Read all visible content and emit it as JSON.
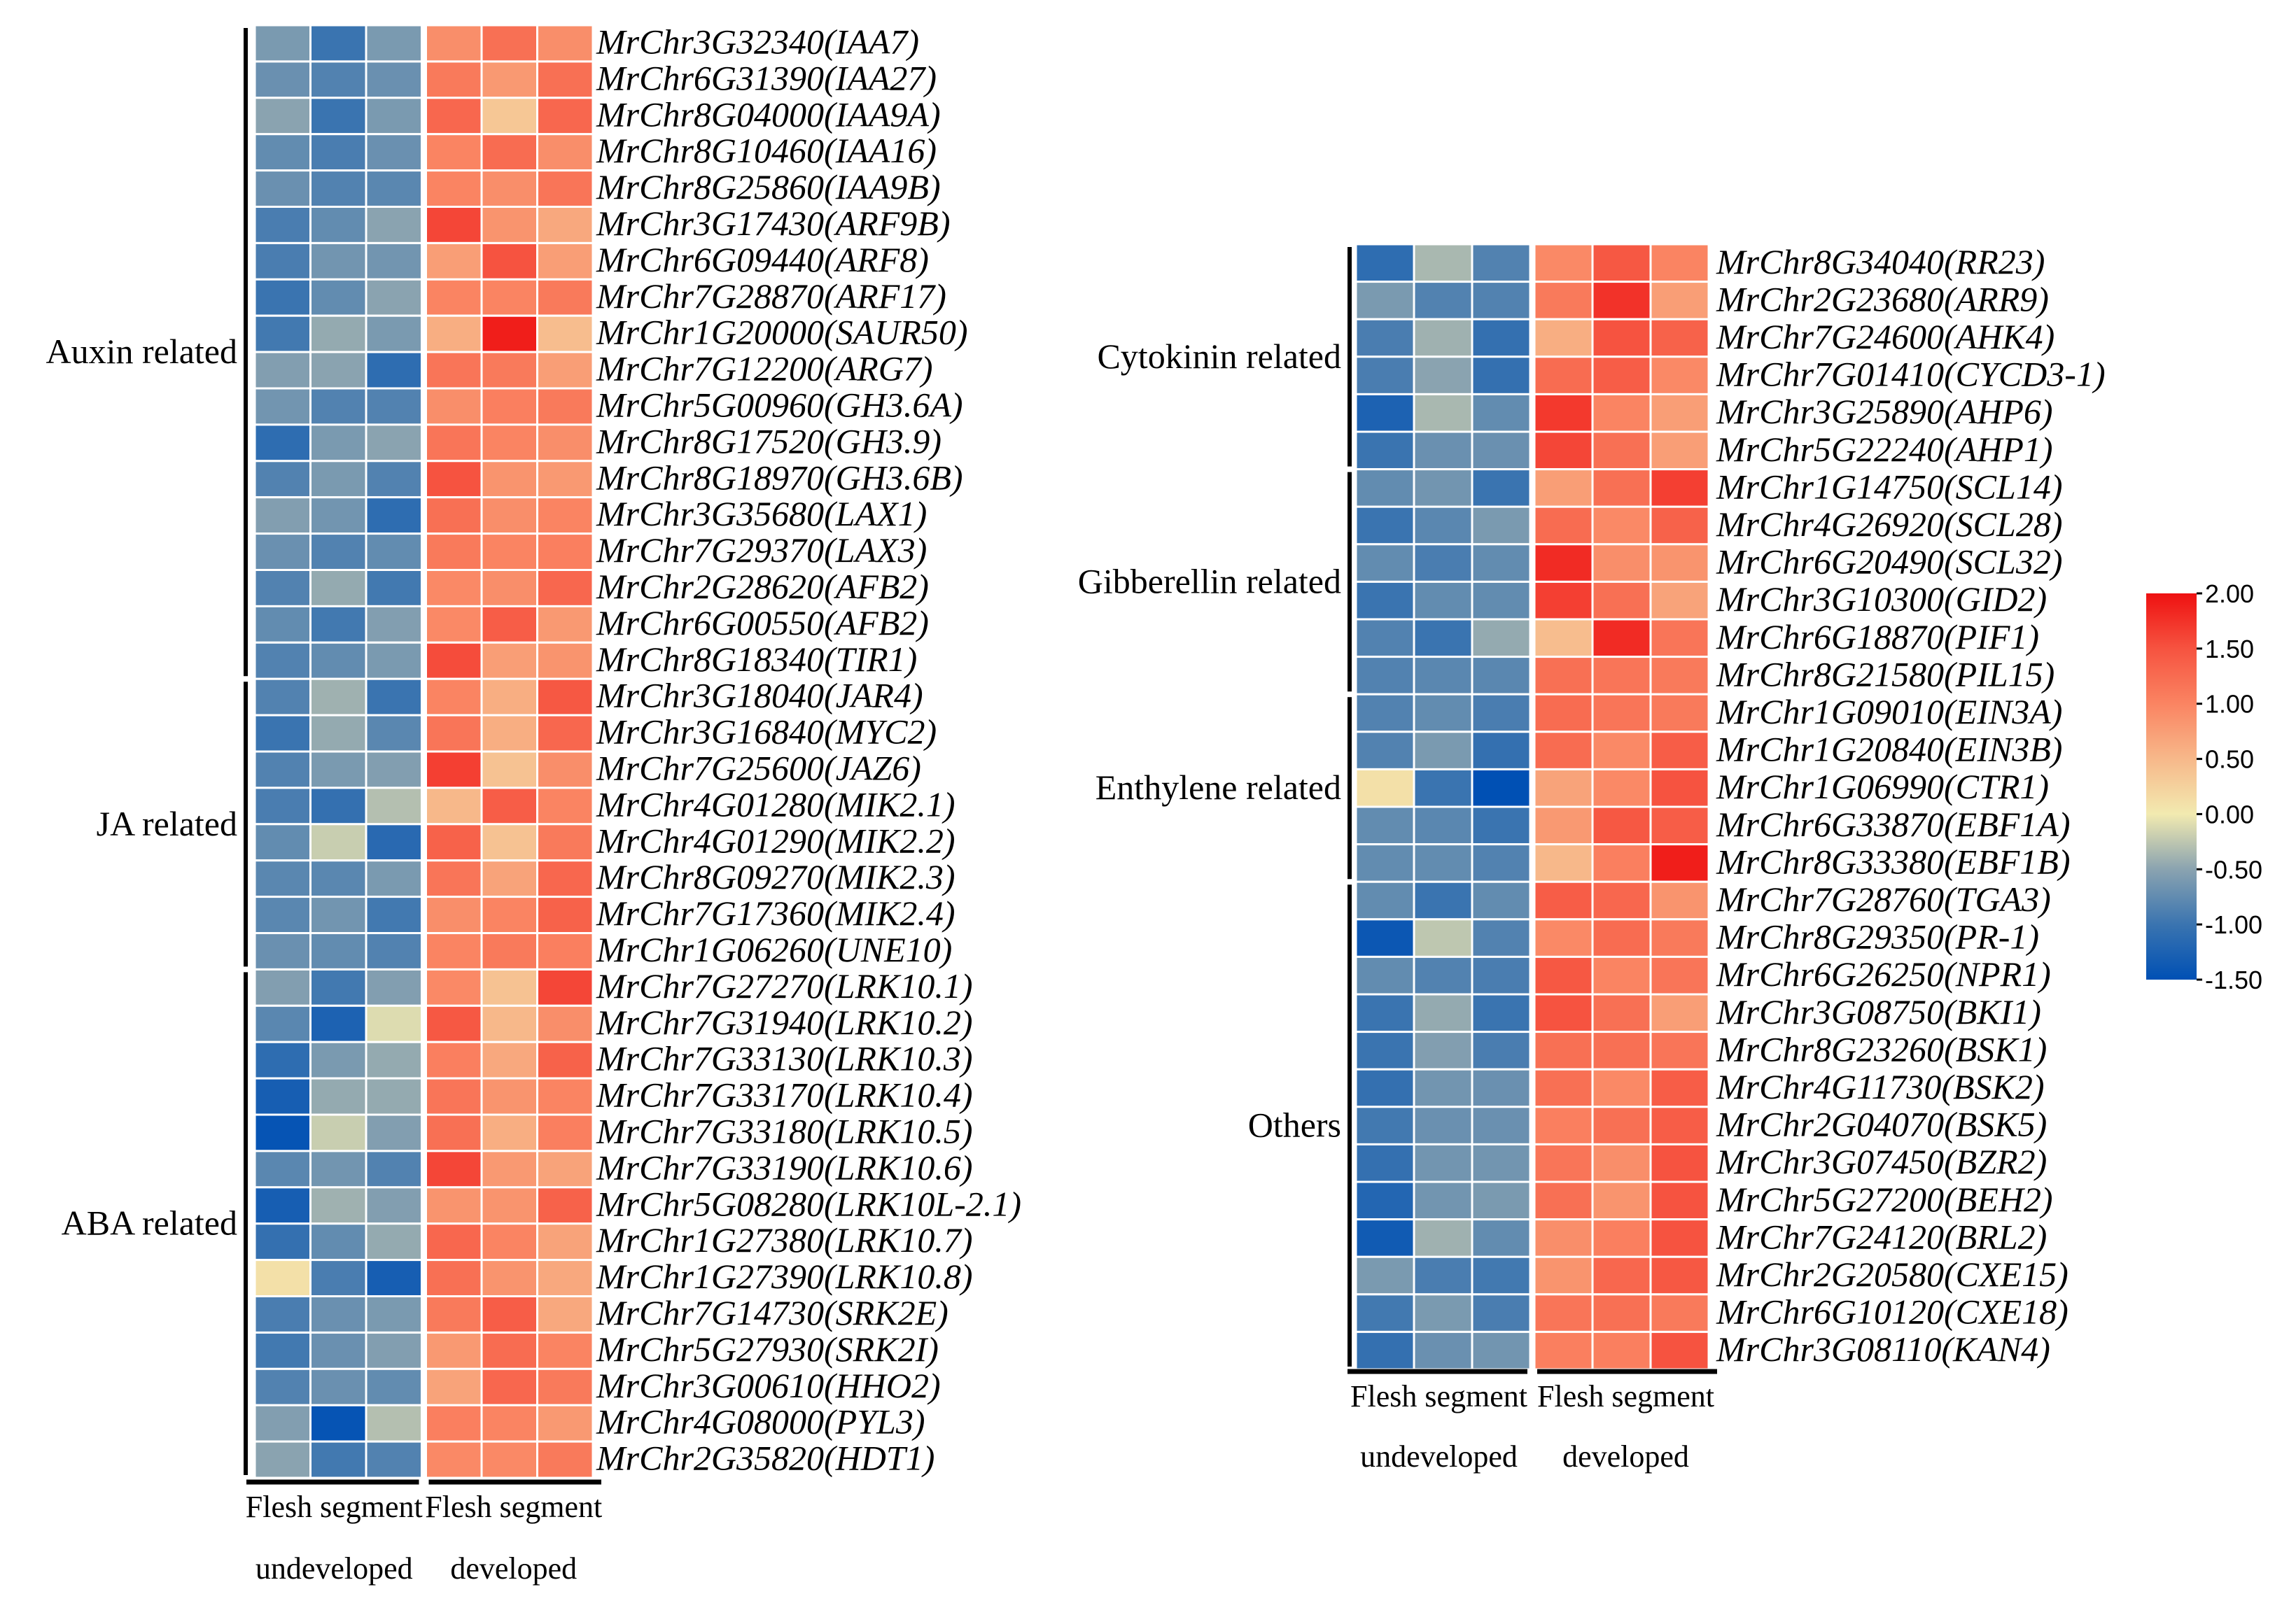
{
  "chart_data": {
    "type": "heatmap",
    "color_scale": {
      "min": -1.5,
      "max": 2.0,
      "ticks": [
        "2.00",
        "1.50",
        "1.00",
        "0.50",
        "0.00",
        "-0.50",
        "-1.00",
        "-1.50"
      ],
      "stops": [
        [
          -1.5,
          "#0050b4"
        ],
        [
          -1.0,
          "#3a74b0"
        ],
        [
          -0.5,
          "#8aa3b0"
        ],
        [
          0.0,
          "#f2eab0"
        ],
        [
          0.5,
          "#f7b88a"
        ],
        [
          1.0,
          "#fa8462"
        ],
        [
          1.5,
          "#f65340"
        ],
        [
          2.0,
          "#ee1111"
        ]
      ]
    },
    "column_groups": [
      {
        "line1": "Flesh segment",
        "line2": "undeveloped"
      },
      {
        "line1": "Flesh segment",
        "line2": "developed"
      }
    ],
    "panels": [
      {
        "groups": [
          {
            "label": "Auxin related",
            "start": 0,
            "end": 17
          },
          {
            "label": "JA related",
            "start": 18,
            "end": 25
          },
          {
            "label": "ABA related",
            "start": 26,
            "end": 39
          }
        ],
        "rows": [
          {
            "gene": "MrChr3G32340(IAA7)",
            "values": [
              -0.6,
              -1.0,
              -0.6,
              0.9,
              1.2,
              0.9
            ]
          },
          {
            "gene": "MrChr6G31390(IAA27)",
            "values": [
              -0.7,
              -0.85,
              -0.7,
              1.1,
              0.8,
              1.2
            ]
          },
          {
            "gene": "MrChr8G04000(IAA9A)",
            "values": [
              -0.5,
              -1.0,
              -0.6,
              1.3,
              0.35,
              1.3
            ]
          },
          {
            "gene": "MrChr8G10460(IAA16)",
            "values": [
              -0.75,
              -0.9,
              -0.7,
              1.0,
              1.25,
              0.9
            ]
          },
          {
            "gene": "MrChr8G25860(IAA9B)",
            "values": [
              -0.7,
              -0.85,
              -0.8,
              1.0,
              0.9,
              1.15
            ]
          },
          {
            "gene": "MrChr3G17430(ARF9B)",
            "values": [
              -0.9,
              -0.75,
              -0.5,
              1.6,
              0.85,
              0.65
            ]
          },
          {
            "gene": "MrChr6G09440(ARF8)",
            "values": [
              -0.9,
              -0.65,
              -0.65,
              0.75,
              1.5,
              0.75
            ]
          },
          {
            "gene": "MrChr7G28870(ARF17)",
            "values": [
              -1.0,
              -0.75,
              -0.5,
              1.0,
              1.0,
              1.1
            ]
          },
          {
            "gene": "MrChr1G20000(SAUR50)",
            "values": [
              -0.95,
              -0.45,
              -0.6,
              0.6,
              1.9,
              0.45
            ]
          },
          {
            "gene": "MrChr7G12200(ARG7)",
            "values": [
              -0.55,
              -0.5,
              -1.1,
              1.15,
              1.1,
              0.75
            ]
          },
          {
            "gene": "MrChr5G00960(GH3.6A)",
            "values": [
              -0.65,
              -0.85,
              -0.85,
              0.9,
              1.05,
              1.1
            ]
          },
          {
            "gene": "MrChr8G17520(GH3.9)",
            "values": [
              -1.1,
              -0.6,
              -0.5,
              1.15,
              1.0,
              0.9
            ]
          },
          {
            "gene": "MrChr8G18970(GH3.6B)",
            "values": [
              -0.85,
              -0.6,
              -0.85,
              1.5,
              0.85,
              0.8
            ]
          },
          {
            "gene": "MrChr3G35680(LAX1)",
            "values": [
              -0.55,
              -0.65,
              -1.1,
              1.2,
              0.9,
              1.0
            ]
          },
          {
            "gene": "MrChr7G29370(LAX3)",
            "values": [
              -0.7,
              -0.85,
              -0.75,
              1.1,
              1.0,
              1.05
            ]
          },
          {
            "gene": "MrChr2G28620(AFB2)",
            "values": [
              -0.85,
              -0.45,
              -0.95,
              0.95,
              0.9,
              1.3
            ]
          },
          {
            "gene": "MrChr6G00550(AFB2)",
            "values": [
              -0.75,
              -0.95,
              -0.55,
              0.95,
              1.4,
              0.8
            ]
          },
          {
            "gene": "MrChr8G18340(TIR1)",
            "values": [
              -0.85,
              -0.75,
              -0.6,
              1.55,
              0.75,
              0.85
            ]
          },
          {
            "gene": "MrChr3G18040(JAR4)",
            "values": [
              -0.85,
              -0.4,
              -1.0,
              1.0,
              0.6,
              1.45
            ]
          },
          {
            "gene": "MrChr3G16840(MYC2)",
            "values": [
              -1.0,
              -0.45,
              -0.8,
              1.15,
              0.6,
              1.3
            ]
          },
          {
            "gene": "MrChr7G25600(JAZ6)",
            "values": [
              -0.85,
              -0.6,
              -0.55,
              1.65,
              0.4,
              0.9
            ]
          },
          {
            "gene": "MrChr4G01280(MIK2.1)",
            "values": [
              -0.9,
              -1.05,
              -0.3,
              0.5,
              1.4,
              1.0
            ]
          },
          {
            "gene": "MrChr4G01290(MIK2.2)",
            "values": [
              -0.75,
              -0.2,
              -1.15,
              1.35,
              0.4,
              1.1
            ]
          },
          {
            "gene": "MrChr8G09270(MIK2.3)",
            "values": [
              -0.8,
              -0.8,
              -0.6,
              1.15,
              0.7,
              1.3
            ]
          },
          {
            "gene": "MrChr7G17360(MIK2.4)",
            "values": [
              -0.8,
              -0.65,
              -0.95,
              0.9,
              1.0,
              1.35
            ]
          },
          {
            "gene": "MrChr1G06260(UNE10)",
            "values": [
              -0.7,
              -0.75,
              -0.85,
              1.0,
              1.1,
              1.05
            ]
          },
          {
            "gene": "MrChr7G27270(LRK10.1)",
            "values": [
              -0.55,
              -0.95,
              -0.55,
              0.95,
              0.4,
              1.6
            ]
          },
          {
            "gene": "MrChr7G31940(LRK10.2)",
            "values": [
              -0.8,
              -1.25,
              -0.1,
              1.45,
              0.5,
              0.9
            ]
          },
          {
            "gene": "MrChr7G33130(LRK10.3)",
            "values": [
              -1.1,
              -0.6,
              -0.45,
              1.05,
              0.65,
              1.35
            ]
          },
          {
            "gene": "MrChr7G33170(LRK10.4)",
            "values": [
              -1.3,
              -0.45,
              -0.45,
              1.15,
              0.85,
              1.0
            ]
          },
          {
            "gene": "MrChr7G33180(LRK10.5)",
            "values": [
              -1.45,
              -0.2,
              -0.55,
              1.2,
              0.6,
              1.05
            ]
          },
          {
            "gene": "MrChr7G33190(LRK10.6)",
            "values": [
              -0.8,
              -0.65,
              -0.85,
              1.6,
              0.8,
              0.7
            ]
          },
          {
            "gene": "MrChr5G08280(LRK10L-2.1)",
            "values": [
              -1.3,
              -0.4,
              -0.55,
              0.85,
              0.85,
              1.35
            ]
          },
          {
            "gene": "MrChr1G27380(LRK10.7)",
            "values": [
              -1.05,
              -0.75,
              -0.45,
              1.3,
              1.0,
              0.7
            ]
          },
          {
            "gene": "MrChr1G27390(LRK10.8)",
            "values": [
              0.1,
              -0.9,
              -1.3,
              1.2,
              0.85,
              0.65
            ]
          },
          {
            "gene": "MrChr7G14730(SRK2E)",
            "values": [
              -0.9,
              -0.7,
              -0.6,
              1.1,
              1.4,
              0.65
            ]
          },
          {
            "gene": "MrChr5G27930(SRK2I)",
            "values": [
              -0.95,
              -0.7,
              -0.55,
              0.8,
              1.25,
              1.0
            ]
          },
          {
            "gene": "MrChr3G00610(HHO2)",
            "values": [
              -0.85,
              -0.7,
              -0.75,
              0.7,
              1.3,
              1.1
            ]
          },
          {
            "gene": "MrChr4G08000(PYL3)",
            "values": [
              -0.55,
              -1.45,
              -0.3,
              1.05,
              1.0,
              0.8
            ]
          },
          {
            "gene": "MrChr2G35820(HDT1)",
            "values": [
              -0.5,
              -0.95,
              -0.85,
              0.95,
              0.95,
              1.1
            ]
          }
        ]
      },
      {
        "groups": [
          {
            "label": "Cytokinin related",
            "start": 0,
            "end": 5
          },
          {
            "label": "Gibberellin related",
            "start": 6,
            "end": 11
          },
          {
            "label": "Enthylene related",
            "start": 12,
            "end": 16
          },
          {
            "label": "Others",
            "start": 17,
            "end": 29
          }
        ],
        "rows": [
          {
            "gene": "MrChr8G34040(RR23)",
            "values": [
              -1.1,
              -0.35,
              -0.85,
              0.95,
              1.45,
              1.0
            ]
          },
          {
            "gene": "MrChr2G23680(ARR9)",
            "values": [
              -0.6,
              -0.85,
              -0.85,
              1.1,
              1.75,
              0.75
            ]
          },
          {
            "gene": "MrChr7G24600(AHK4)",
            "values": [
              -0.9,
              -0.4,
              -1.05,
              0.6,
              1.5,
              1.35
            ]
          },
          {
            "gene": "MrChr7G01410(CYCD3-1)",
            "values": [
              -0.9,
              -0.5,
              -1.05,
              1.25,
              1.4,
              0.95
            ]
          },
          {
            "gene": "MrChr3G25890(AHP6)",
            "values": [
              -1.25,
              -0.35,
              -0.75,
              1.7,
              1.0,
              0.75
            ]
          },
          {
            "gene": "MrChr5G22240(AHP1)",
            "values": [
              -1.0,
              -0.7,
              -0.7,
              1.6,
              1.2,
              0.75
            ]
          },
          {
            "gene": "MrChr1G14750(SCL14)",
            "values": [
              -0.75,
              -0.65,
              -1.0,
              0.75,
              1.2,
              1.65
            ]
          },
          {
            "gene": "MrChr4G26920(SCL28)",
            "values": [
              -1.0,
              -0.8,
              -0.6,
              1.25,
              0.95,
              1.35
            ]
          },
          {
            "gene": "MrChr6G20490(SCL32)",
            "values": [
              -0.75,
              -0.9,
              -0.75,
              1.8,
              0.9,
              0.85
            ]
          },
          {
            "gene": "MrChr3G10300(GID2)",
            "values": [
              -1.0,
              -0.75,
              -0.75,
              1.65,
              1.2,
              0.7
            ]
          },
          {
            "gene": "MrChr6G18870(PIF1)",
            "values": [
              -0.85,
              -1.0,
              -0.45,
              0.45,
              1.8,
              1.15
            ]
          },
          {
            "gene": "MrChr8G21580(PIL15)",
            "values": [
              -0.85,
              -0.8,
              -0.8,
              1.2,
              1.15,
              1.1
            ]
          },
          {
            "gene": "MrChr1G09010(EIN3A)",
            "values": [
              -0.85,
              -0.75,
              -0.9,
              1.25,
              1.15,
              1.1
            ]
          },
          {
            "gene": "MrChr1G20840(EIN3B)",
            "values": [
              -0.85,
              -0.6,
              -1.05,
              1.25,
              0.95,
              1.4
            ]
          },
          {
            "gene": "MrChr1G06990(CTR1)",
            "values": [
              0.1,
              -1.0,
              -1.5,
              0.7,
              0.95,
              1.5
            ]
          },
          {
            "gene": "MrChr6G33870(EBF1A)",
            "values": [
              -0.75,
              -0.8,
              -1.0,
              0.8,
              1.45,
              1.4
            ]
          },
          {
            "gene": "MrChr8G33380(EBF1B)",
            "values": [
              -0.75,
              -0.75,
              -0.85,
              0.5,
              1.05,
              1.9
            ]
          },
          {
            "gene": "MrChr7G28760(TGA3)",
            "values": [
              -0.75,
              -1.0,
              -0.75,
              1.4,
              1.3,
              0.85
            ]
          },
          {
            "gene": "MrChr8G29350(PR-1)",
            "values": [
              -1.4,
              -0.25,
              -0.85,
              0.95,
              1.25,
              1.1
            ]
          },
          {
            "gene": "MrChr6G26250(NPR1)",
            "values": [
              -0.75,
              -0.85,
              -0.9,
              1.45,
              1.0,
              1.15
            ]
          },
          {
            "gene": "MrChr3G08750(BKI1)",
            "values": [
              -1.0,
              -0.45,
              -1.0,
              1.5,
              1.2,
              0.75
            ]
          },
          {
            "gene": "MrChr8G23260(BSK1)",
            "values": [
              -1.0,
              -0.55,
              -0.9,
              1.2,
              1.2,
              1.15
            ]
          },
          {
            "gene": "MrChr4G11730(BSK2)",
            "values": [
              -1.05,
              -0.65,
              -0.7,
              1.2,
              0.95,
              1.4
            ]
          },
          {
            "gene": "MrChr2G04070(BSK5)",
            "values": [
              -0.95,
              -0.7,
              -0.7,
              1.05,
              1.2,
              1.4
            ]
          },
          {
            "gene": "MrChr3G07450(BZR2)",
            "values": [
              -1.05,
              -0.65,
              -0.65,
              1.15,
              0.9,
              1.5
            ]
          },
          {
            "gene": "MrChr5G27200(BEH2)",
            "values": [
              -1.2,
              -0.65,
              -0.6,
              1.2,
              0.85,
              1.5
            ]
          },
          {
            "gene": "MrChr7G24120(BRL2)",
            "values": [
              -1.35,
              -0.4,
              -0.75,
              0.9,
              1.05,
              1.5
            ]
          },
          {
            "gene": "MrChr2G20580(CXE15)",
            "values": [
              -0.6,
              -0.9,
              -0.95,
              0.85,
              1.3,
              1.45
            ]
          },
          {
            "gene": "MrChr6G10120(CXE18)",
            "values": [
              -0.95,
              -0.6,
              -0.9,
              1.15,
              1.2,
              1.1
            ]
          },
          {
            "gene": "MrChr3G08110(KAN4)",
            "values": [
              -1.05,
              -0.7,
              -0.65,
              1.05,
              1.05,
              1.5
            ]
          }
        ]
      }
    ]
  }
}
